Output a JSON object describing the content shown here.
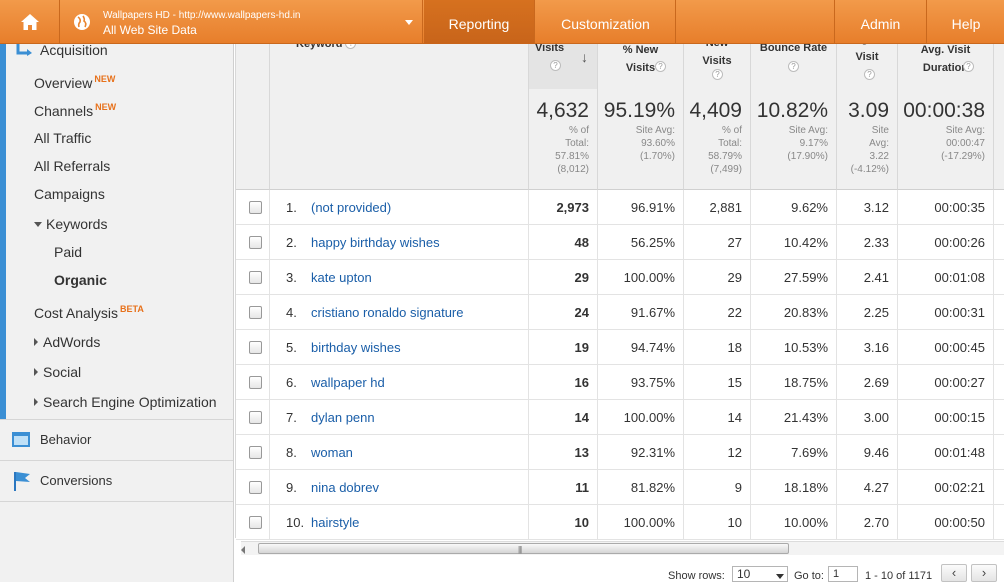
{
  "header": {
    "account_url": "Wallpapers HD - http://www.wallpapers-hd.in",
    "account_view": "All Web Site Data",
    "tabs": {
      "reporting": "Reporting",
      "customization": "Customization",
      "admin": "Admin",
      "help": "Help"
    },
    "accent_color": "#e9852f"
  },
  "sidebar": {
    "acquisition": "Acquisition",
    "overview": "Overview",
    "overview_badge": "NEW",
    "channels": "Channels",
    "channels_badge": "NEW",
    "all_traffic": "All Traffic",
    "all_referrals": "All Referrals",
    "campaigns": "Campaigns",
    "keywords": "Keywords",
    "paid": "Paid",
    "organic": "Organic",
    "cost_analysis": "Cost Analysis",
    "cost_badge": "BETA",
    "adwords": "AdWords",
    "social": "Social",
    "seo": "Search Engine Optimization",
    "behavior": "Behavior",
    "conversions": "Conversions"
  },
  "table": {
    "headers": {
      "keyword": "Keyword",
      "visits": "Visits",
      "new_visits_pct": "% New Visits",
      "new_visits": "New Visits",
      "bounce_rate": "Bounce Rate",
      "pages_visit": "Pages / Visit",
      "avg_duration": "Avg. Visit Duration",
      "help_glyph": "?",
      "sort_glyph": "↓"
    },
    "summary": {
      "visits": {
        "value": "4,632",
        "line1": "% of",
        "line2": "Total:",
        "line3": "57.81%",
        "line4": "(8,012)"
      },
      "new_visits_pct": {
        "value": "95.19%",
        "line1": "Site Avg:",
        "line2": "93.60%",
        "line3": "(1.70%)"
      },
      "new_visits": {
        "value": "4,409",
        "line1": "% of",
        "line2": "Total:",
        "line3": "58.79%",
        "line4": "(7,499)"
      },
      "bounce_rate": {
        "value": "10.82%",
        "line1": "Site Avg:",
        "line2": "9.17%",
        "line3": "(17.90%)"
      },
      "pages_visit": {
        "value": "3.09",
        "line1": "Site",
        "line2": "Avg:",
        "line3": "3.22",
        "line4": "(-4.12%)"
      },
      "avg_duration": {
        "value": "00:00:38",
        "line1": "Site Avg:",
        "line2": "00:00:47",
        "line3": "(-17.29%)"
      }
    },
    "rows": [
      {
        "idx": "1.",
        "keyword": "(not provided)",
        "visits": "2,973",
        "new_pct": "96.91%",
        "new_visits": "2,881",
        "bounce": "9.62%",
        "pages": "3.12",
        "duration": "00:00:35"
      },
      {
        "idx": "2.",
        "keyword": "happy birthday wishes",
        "visits": "48",
        "new_pct": "56.25%",
        "new_visits": "27",
        "bounce": "10.42%",
        "pages": "2.33",
        "duration": "00:00:26"
      },
      {
        "idx": "3.",
        "keyword": "kate upton",
        "visits": "29",
        "new_pct": "100.00%",
        "new_visits": "29",
        "bounce": "27.59%",
        "pages": "2.41",
        "duration": "00:01:08"
      },
      {
        "idx": "4.",
        "keyword": "cristiano ronaldo signature",
        "visits": "24",
        "new_pct": "91.67%",
        "new_visits": "22",
        "bounce": "20.83%",
        "pages": "2.25",
        "duration": "00:00:31"
      },
      {
        "idx": "5.",
        "keyword": "birthday wishes",
        "visits": "19",
        "new_pct": "94.74%",
        "new_visits": "18",
        "bounce": "10.53%",
        "pages": "3.16",
        "duration": "00:00:45"
      },
      {
        "idx": "6.",
        "keyword": "wallpaper hd",
        "visits": "16",
        "new_pct": "93.75%",
        "new_visits": "15",
        "bounce": "18.75%",
        "pages": "2.69",
        "duration": "00:00:27"
      },
      {
        "idx": "7.",
        "keyword": "dylan penn",
        "visits": "14",
        "new_pct": "100.00%",
        "new_visits": "14",
        "bounce": "21.43%",
        "pages": "3.00",
        "duration": "00:00:15"
      },
      {
        "idx": "8.",
        "keyword": "woman",
        "visits": "13",
        "new_pct": "92.31%",
        "new_visits": "12",
        "bounce": "7.69%",
        "pages": "9.46",
        "duration": "00:01:48"
      },
      {
        "idx": "9.",
        "keyword": "nina dobrev",
        "visits": "11",
        "new_pct": "81.82%",
        "new_visits": "9",
        "bounce": "18.18%",
        "pages": "4.27",
        "duration": "00:02:21"
      },
      {
        "idx": "10.",
        "keyword": "hairstyle",
        "visits": "10",
        "new_pct": "100.00%",
        "new_visits": "10",
        "bounce": "10.00%",
        "pages": "2.70",
        "duration": "00:00:50"
      }
    ]
  },
  "footer": {
    "show_rows_label": "Show rows:",
    "show_rows_value": "10",
    "goto_label": "Go to:",
    "goto_value": "1",
    "range_text": "1 - 10 of 1171",
    "prev_glyph": "‹",
    "next_glyph": "›"
  }
}
